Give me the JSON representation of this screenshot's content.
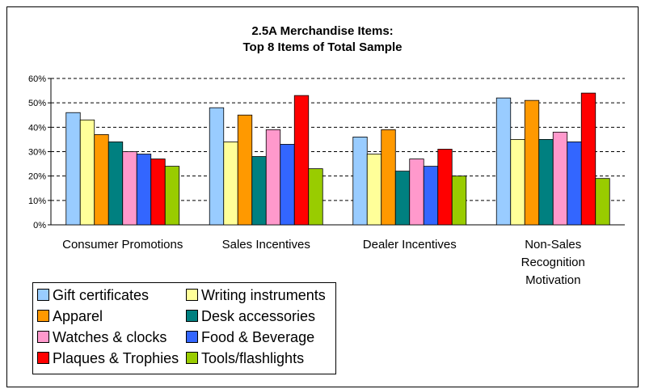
{
  "chart_data": {
    "type": "bar",
    "title_lines": [
      "2.5A Merchandise Items:",
      "Top 8 Items of Total Sample"
    ],
    "categories": [
      "Consumer Promotions",
      "Sales Incentives",
      "Dealer Incentives",
      "Non-Sales Recognition Motivation"
    ],
    "series": [
      {
        "name": "Gift certificates",
        "color": "#99ccff",
        "values": [
          46,
          48,
          36,
          52
        ]
      },
      {
        "name": "Writing instruments",
        "color": "#ffff99",
        "values": [
          43,
          34,
          29,
          35
        ]
      },
      {
        "name": "Apparel",
        "color": "#ff9900",
        "values": [
          37,
          45,
          39,
          51
        ]
      },
      {
        "name": "Desk accessories",
        "color": "#008080",
        "values": [
          34,
          28,
          22,
          35
        ]
      },
      {
        "name": "Watches & clocks",
        "color": "#ff99cc",
        "values": [
          30,
          39,
          27,
          38
        ]
      },
      {
        "name": "Food & Beverage",
        "color": "#3366ff",
        "values": [
          29,
          33,
          24,
          34
        ]
      },
      {
        "name": "Plaques & Trophies",
        "color": "#ff0000",
        "values": [
          27,
          53,
          31,
          54
        ]
      },
      {
        "name": "Tools/flashlights",
        "color": "#99cc00",
        "values": [
          24,
          23,
          20,
          19
        ]
      }
    ],
    "ylim": [
      0,
      60
    ],
    "yticks": [
      {
        "value": 0,
        "label": "0%"
      },
      {
        "value": 10,
        "label": "10%"
      },
      {
        "value": 20,
        "label": "20%"
      },
      {
        "value": 30,
        "label": "30%"
      },
      {
        "value": 40,
        "label": "40%"
      },
      {
        "value": 50,
        "label": "50%"
      },
      {
        "value": 60,
        "label": "60%"
      }
    ],
    "grid": true
  }
}
